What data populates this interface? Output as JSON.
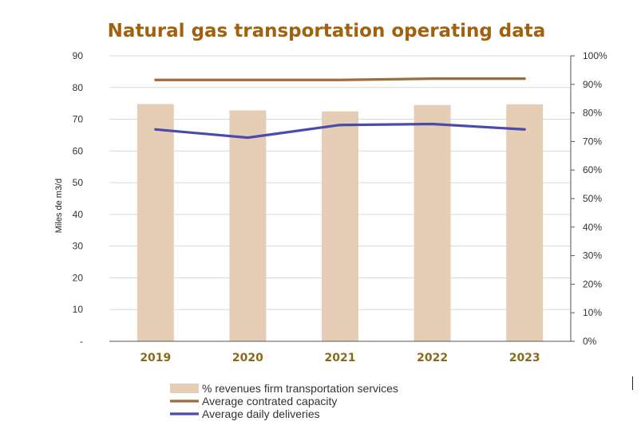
{
  "chart_data": {
    "type": "bar",
    "title": "Natural gas transportation operating data",
    "ylabel": "Miles de m3/d",
    "categories": [
      "2019",
      "2020",
      "2021",
      "2022",
      "2023"
    ],
    "ylim": [
      0,
      90
    ],
    "yticks": [
      "-",
      "10",
      "20",
      "30",
      "40",
      "50",
      "60",
      "70",
      "80",
      "90"
    ],
    "y2lim": [
      0,
      1
    ],
    "y2ticks": [
      "0%",
      "10%",
      "20%",
      "30%",
      "40%",
      "50%",
      "60%",
      "70%",
      "80%",
      "90%",
      "100%"
    ],
    "grid": true,
    "legend_position": "bottom",
    "series": [
      {
        "name": "% revenues firm transportation services",
        "kind": "bar",
        "axis": "y1",
        "color": "#e6cdb5",
        "values": [
          74.8,
          72.8,
          72.5,
          74.5,
          74.7
        ]
      },
      {
        "name": "Average contrated capacity",
        "kind": "line",
        "axis": "y1",
        "color": "#9c6b3e",
        "values": [
          82.4,
          82.4,
          82.4,
          82.8,
          82.8
        ]
      },
      {
        "name": "Average daily deliveries",
        "kind": "line",
        "axis": "y1",
        "color": "#4a4bab",
        "values": [
          66.8,
          64.2,
          68.2,
          68.5,
          66.8
        ]
      }
    ],
    "colors": {
      "title": "#a0620f",
      "xtick": "#8a6a1a",
      "grid": "#d9d9d9",
      "axis": "#555555"
    }
  }
}
